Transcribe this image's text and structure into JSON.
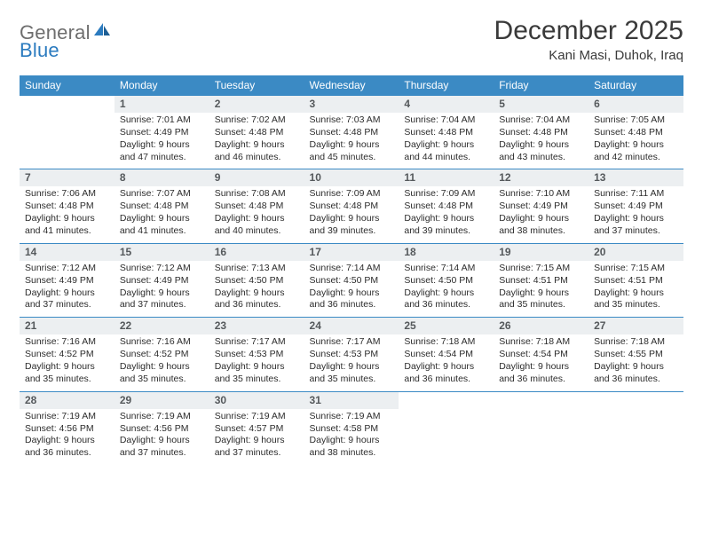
{
  "brand": {
    "part1": "General",
    "part2": "Blue"
  },
  "title": "December 2025",
  "location": "Kani Masi, Duhok, Iraq",
  "colors": {
    "header_bg": "#3b8ac4",
    "header_text": "#ffffff",
    "daynum_bg": "#eceff1",
    "daynum_text": "#55595c",
    "body_text": "#2c2c2c",
    "rule": "#3b8ac4",
    "title_text": "#3a3a3a",
    "logo_gray": "#6e6e6e",
    "logo_blue": "#2b7bbf"
  },
  "weekdays": [
    "Sunday",
    "Monday",
    "Tuesday",
    "Wednesday",
    "Thursday",
    "Friday",
    "Saturday"
  ],
  "weeks": [
    [
      null,
      {
        "n": "1",
        "sr": "Sunrise: 7:01 AM",
        "ss": "Sunset: 4:49 PM",
        "dl": "Daylight: 9 hours and 47 minutes."
      },
      {
        "n": "2",
        "sr": "Sunrise: 7:02 AM",
        "ss": "Sunset: 4:48 PM",
        "dl": "Daylight: 9 hours and 46 minutes."
      },
      {
        "n": "3",
        "sr": "Sunrise: 7:03 AM",
        "ss": "Sunset: 4:48 PM",
        "dl": "Daylight: 9 hours and 45 minutes."
      },
      {
        "n": "4",
        "sr": "Sunrise: 7:04 AM",
        "ss": "Sunset: 4:48 PM",
        "dl": "Daylight: 9 hours and 44 minutes."
      },
      {
        "n": "5",
        "sr": "Sunrise: 7:04 AM",
        "ss": "Sunset: 4:48 PM",
        "dl": "Daylight: 9 hours and 43 minutes."
      },
      {
        "n": "6",
        "sr": "Sunrise: 7:05 AM",
        "ss": "Sunset: 4:48 PM",
        "dl": "Daylight: 9 hours and 42 minutes."
      }
    ],
    [
      {
        "n": "7",
        "sr": "Sunrise: 7:06 AM",
        "ss": "Sunset: 4:48 PM",
        "dl": "Daylight: 9 hours and 41 minutes."
      },
      {
        "n": "8",
        "sr": "Sunrise: 7:07 AM",
        "ss": "Sunset: 4:48 PM",
        "dl": "Daylight: 9 hours and 41 minutes."
      },
      {
        "n": "9",
        "sr": "Sunrise: 7:08 AM",
        "ss": "Sunset: 4:48 PM",
        "dl": "Daylight: 9 hours and 40 minutes."
      },
      {
        "n": "10",
        "sr": "Sunrise: 7:09 AM",
        "ss": "Sunset: 4:48 PM",
        "dl": "Daylight: 9 hours and 39 minutes."
      },
      {
        "n": "11",
        "sr": "Sunrise: 7:09 AM",
        "ss": "Sunset: 4:48 PM",
        "dl": "Daylight: 9 hours and 39 minutes."
      },
      {
        "n": "12",
        "sr": "Sunrise: 7:10 AM",
        "ss": "Sunset: 4:49 PM",
        "dl": "Daylight: 9 hours and 38 minutes."
      },
      {
        "n": "13",
        "sr": "Sunrise: 7:11 AM",
        "ss": "Sunset: 4:49 PM",
        "dl": "Daylight: 9 hours and 37 minutes."
      }
    ],
    [
      {
        "n": "14",
        "sr": "Sunrise: 7:12 AM",
        "ss": "Sunset: 4:49 PM",
        "dl": "Daylight: 9 hours and 37 minutes."
      },
      {
        "n": "15",
        "sr": "Sunrise: 7:12 AM",
        "ss": "Sunset: 4:49 PM",
        "dl": "Daylight: 9 hours and 37 minutes."
      },
      {
        "n": "16",
        "sr": "Sunrise: 7:13 AM",
        "ss": "Sunset: 4:50 PM",
        "dl": "Daylight: 9 hours and 36 minutes."
      },
      {
        "n": "17",
        "sr": "Sunrise: 7:14 AM",
        "ss": "Sunset: 4:50 PM",
        "dl": "Daylight: 9 hours and 36 minutes."
      },
      {
        "n": "18",
        "sr": "Sunrise: 7:14 AM",
        "ss": "Sunset: 4:50 PM",
        "dl": "Daylight: 9 hours and 36 minutes."
      },
      {
        "n": "19",
        "sr": "Sunrise: 7:15 AM",
        "ss": "Sunset: 4:51 PM",
        "dl": "Daylight: 9 hours and 35 minutes."
      },
      {
        "n": "20",
        "sr": "Sunrise: 7:15 AM",
        "ss": "Sunset: 4:51 PM",
        "dl": "Daylight: 9 hours and 35 minutes."
      }
    ],
    [
      {
        "n": "21",
        "sr": "Sunrise: 7:16 AM",
        "ss": "Sunset: 4:52 PM",
        "dl": "Daylight: 9 hours and 35 minutes."
      },
      {
        "n": "22",
        "sr": "Sunrise: 7:16 AM",
        "ss": "Sunset: 4:52 PM",
        "dl": "Daylight: 9 hours and 35 minutes."
      },
      {
        "n": "23",
        "sr": "Sunrise: 7:17 AM",
        "ss": "Sunset: 4:53 PM",
        "dl": "Daylight: 9 hours and 35 minutes."
      },
      {
        "n": "24",
        "sr": "Sunrise: 7:17 AM",
        "ss": "Sunset: 4:53 PM",
        "dl": "Daylight: 9 hours and 35 minutes."
      },
      {
        "n": "25",
        "sr": "Sunrise: 7:18 AM",
        "ss": "Sunset: 4:54 PM",
        "dl": "Daylight: 9 hours and 36 minutes."
      },
      {
        "n": "26",
        "sr": "Sunrise: 7:18 AM",
        "ss": "Sunset: 4:54 PM",
        "dl": "Daylight: 9 hours and 36 minutes."
      },
      {
        "n": "27",
        "sr": "Sunrise: 7:18 AM",
        "ss": "Sunset: 4:55 PM",
        "dl": "Daylight: 9 hours and 36 minutes."
      }
    ],
    [
      {
        "n": "28",
        "sr": "Sunrise: 7:19 AM",
        "ss": "Sunset: 4:56 PM",
        "dl": "Daylight: 9 hours and 36 minutes."
      },
      {
        "n": "29",
        "sr": "Sunrise: 7:19 AM",
        "ss": "Sunset: 4:56 PM",
        "dl": "Daylight: 9 hours and 37 minutes."
      },
      {
        "n": "30",
        "sr": "Sunrise: 7:19 AM",
        "ss": "Sunset: 4:57 PM",
        "dl": "Daylight: 9 hours and 37 minutes."
      },
      {
        "n": "31",
        "sr": "Sunrise: 7:19 AM",
        "ss": "Sunset: 4:58 PM",
        "dl": "Daylight: 9 hours and 38 minutes."
      },
      null,
      null,
      null
    ]
  ]
}
